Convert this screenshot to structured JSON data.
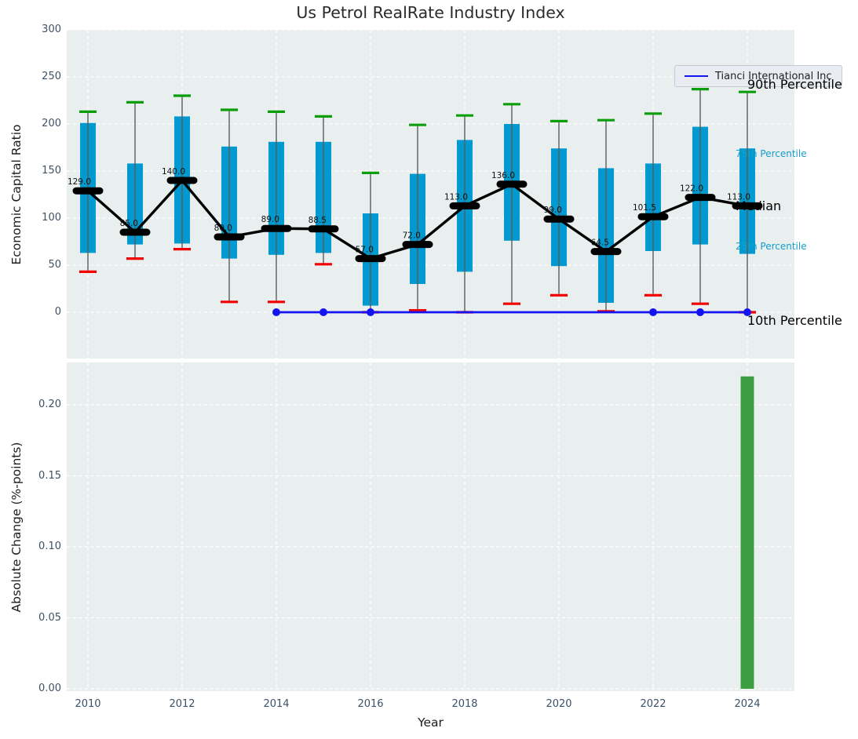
{
  "title": "Us Petrol RealRate Industry Index",
  "legend": {
    "label": "Tianci International Inc"
  },
  "axes": {
    "top_ylabel": "Economic Capital Ratio",
    "bottom_ylabel": "Absolute Change (%-points)",
    "xlabel": "Year"
  },
  "colors": {
    "panel_bg": "#e9eeef",
    "grid": "#ffffff",
    "bar_blue": "#009ad0",
    "whisker_gray": "#5c5c5c",
    "cap_green": "#0a9f0a",
    "cap_red": "#f40000",
    "median_black": "#000000",
    "overlay_blue": "#1414f0",
    "change_green": "#3d9e41",
    "tick_label": "#3e5266",
    "annotation_cyan": "#149fc8"
  },
  "chart_data": [
    {
      "type": "candlestick",
      "title": "Us Petrol RealRate Industry Index",
      "ylabel": "Economic Capital Ratio",
      "xlabel": "Year",
      "ylim": [
        -49,
        300
      ],
      "yticks": [
        0,
        50,
        100,
        150,
        200,
        250,
        300
      ],
      "xticks": [
        2010,
        2012,
        2014,
        2016,
        2018,
        2020,
        2022,
        2024
      ],
      "grid": true,
      "legend_position": "upper right",
      "categories": [
        2010,
        2011,
        2012,
        2013,
        2014,
        2015,
        2016,
        2017,
        2018,
        2019,
        2020,
        2021,
        2022,
        2023,
        2024
      ],
      "series": [
        {
          "name": "90th Percentile",
          "values": [
            213,
            223,
            230,
            215,
            213,
            208,
            148,
            199,
            209,
            221,
            203,
            204,
            211,
            237,
            234
          ]
        },
        {
          "name": "75th Percentile",
          "values": [
            201,
            158,
            208,
            176,
            181,
            181,
            105,
            147,
            183,
            200,
            174,
            153,
            158,
            197,
            174
          ]
        },
        {
          "name": "Median",
          "values": [
            129,
            85,
            140,
            80,
            89,
            88.5,
            57,
            72,
            113,
            136,
            99,
            64.5,
            101.5,
            122,
            113
          ]
        },
        {
          "name": "25th Percentile",
          "values": [
            63,
            72,
            73,
            57,
            61,
            63,
            7,
            30,
            43,
            76,
            49,
            10,
            65,
            72,
            62
          ]
        },
        {
          "name": "10th Percentile",
          "values": [
            43,
            57,
            67,
            11,
            11,
            51,
            0,
            2,
            0,
            9,
            18,
            1,
            18,
            9,
            0
          ]
        }
      ],
      "median_labels": [
        "129.0",
        "85.0",
        "140.0",
        "80.0",
        "89.0",
        "88.5",
        "57.0",
        "72.0",
        "113.0",
        "136.0",
        "99.0",
        "64.5",
        "101.5",
        "122.0",
        "113.0"
      ],
      "overlay_series": {
        "name": "Tianci International Inc",
        "x": [
          2014,
          2015,
          2016,
          2022,
          2023,
          2024
        ],
        "y": [
          0,
          0,
          0,
          0,
          0,
          0
        ]
      },
      "right_annotations": [
        "90th Percentile",
        "75th Percentile",
        "Median",
        "25th Percentile",
        "10th Percentile"
      ]
    },
    {
      "type": "bar",
      "ylabel": "Absolute Change (%-points)",
      "xlabel": "Year",
      "ylim": [
        0,
        0.23
      ],
      "yticks": [
        0.0,
        0.05,
        0.1,
        0.15,
        0.2
      ],
      "xticks": [
        2010,
        2012,
        2014,
        2016,
        2018,
        2020,
        2022,
        2024
      ],
      "grid": true,
      "categories": [
        2024
      ],
      "values": [
        0.22
      ]
    }
  ]
}
